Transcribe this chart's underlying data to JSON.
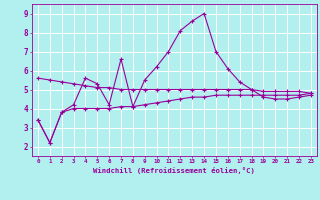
{
  "xlabel": "Windchill (Refroidissement éolien,°C)",
  "x": [
    0,
    1,
    2,
    3,
    4,
    5,
    6,
    7,
    8,
    9,
    10,
    11,
    12,
    13,
    14,
    15,
    16,
    17,
    18,
    19,
    20,
    21,
    22,
    23
  ],
  "line1": [
    3.4,
    2.2,
    3.8,
    4.2,
    5.6,
    5.3,
    4.2,
    6.6,
    4.1,
    5.5,
    6.2,
    7.0,
    8.1,
    8.6,
    9.0,
    7.0,
    6.1,
    5.4,
    5.0,
    4.6,
    4.5,
    4.5,
    4.6,
    4.7
  ],
  "line2": [
    3.4,
    2.2,
    3.8,
    4.0,
    4.0,
    4.0,
    4.0,
    4.1,
    4.1,
    4.2,
    4.3,
    4.4,
    4.5,
    4.6,
    4.6,
    4.7,
    4.7,
    4.7,
    4.7,
    4.7,
    4.7,
    4.7,
    4.7,
    4.8
  ],
  "line3": [
    5.6,
    5.5,
    5.4,
    5.3,
    5.2,
    5.1,
    5.1,
    5.0,
    5.0,
    5.0,
    5.0,
    5.0,
    5.0,
    5.0,
    5.0,
    5.0,
    5.0,
    5.0,
    5.0,
    4.9,
    4.9,
    4.9,
    4.9,
    4.8
  ],
  "line_color": "#990099",
  "bg_color": "#b2f0f0",
  "grid_color": "#ffffff",
  "ylim": [
    1.5,
    9.5
  ],
  "xlim": [
    -0.5,
    23.5
  ],
  "yticks": [
    2,
    3,
    4,
    5,
    6,
    7,
    8,
    9
  ],
  "ytick_labels": [
    "2",
    "3",
    "4",
    "5",
    "6",
    "7",
    "8",
    "9"
  ]
}
